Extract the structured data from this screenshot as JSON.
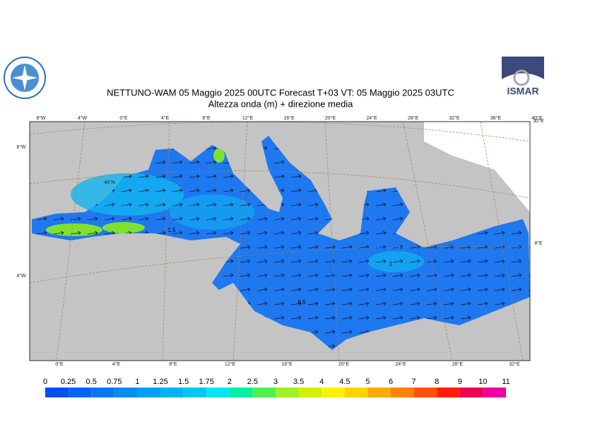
{
  "header": {
    "title": "NETTUNO-WAM  05   Maggio  2025 00UTC Forecast T+03 VT: 05   Maggio  2025 03UTC",
    "subtitle": "Altezza onda (m) + direzione media",
    "logo_text": "ISMAR"
  },
  "map": {
    "top_labels": [
      "8°W",
      "4°W",
      "0°E",
      "4°E",
      "8°E",
      "12°E",
      "16°E",
      "20°E",
      "24°E",
      "28°E",
      "32°E",
      "36°E",
      "40°E"
    ],
    "bottom_labels": [
      "0°E",
      "4°E",
      "8°E",
      "12°E",
      "16°E",
      "20°E",
      "24°E",
      "28°E",
      "32°E"
    ],
    "left_labels": [
      "8°W",
      "40°N",
      "4°W"
    ],
    "right_labels": [
      "30°E",
      "8°E"
    ],
    "contour_labels": [
      "1.5",
      "1",
      "0.5"
    ]
  },
  "legend": {
    "levels": [
      0,
      0.25,
      0.5,
      0.75,
      1,
      1.25,
      1.5,
      1.75,
      2,
      2.5,
      3,
      3.5,
      4,
      4.5,
      5,
      6,
      7,
      8,
      9,
      10,
      11
    ],
    "colors": [
      "#0050f0",
      "#0064f5",
      "#0078f5",
      "#008cf5",
      "#00a0f5",
      "#00b4f5",
      "#00c8f5",
      "#00e6f5",
      "#00f0a0",
      "#50f050",
      "#a0f028",
      "#d2f000",
      "#fff000",
      "#ffd200",
      "#ffaa00",
      "#ff8200",
      "#ff5000",
      "#ff1e00",
      "#f00050",
      "#f000a0"
    ]
  }
}
